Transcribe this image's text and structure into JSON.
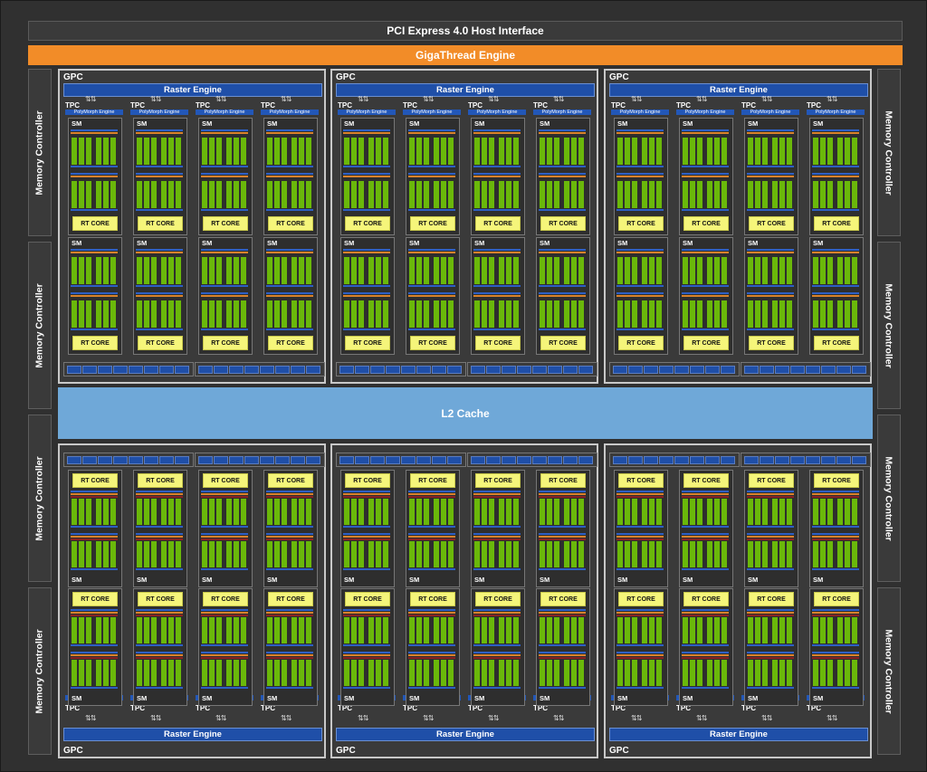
{
  "header": {
    "pcie_label": "PCI Express 4.0 Host Interface",
    "giga_label": "GigaThread Engine"
  },
  "memory_controllers": {
    "label": "Memory Controller"
  },
  "l2": {
    "label": "L2 Cache"
  },
  "gpc": {
    "label": "GPC",
    "raster_label": "Raster Engine"
  },
  "tpc": {
    "label": "TPC",
    "polymorph_label": "PolyMorph Engine"
  },
  "sm": {
    "label": "SM",
    "rt_label": "RT CORE"
  },
  "colors": {
    "accent_orange": "#f28c28",
    "l2_blue": "#6fa8d8",
    "raster_blue": "#1f4fa8",
    "rt_yellow": "#f5f57a",
    "cuda_green": "#6ab80a"
  },
  "icons": {
    "arrows": "double-arrow-icon"
  }
}
